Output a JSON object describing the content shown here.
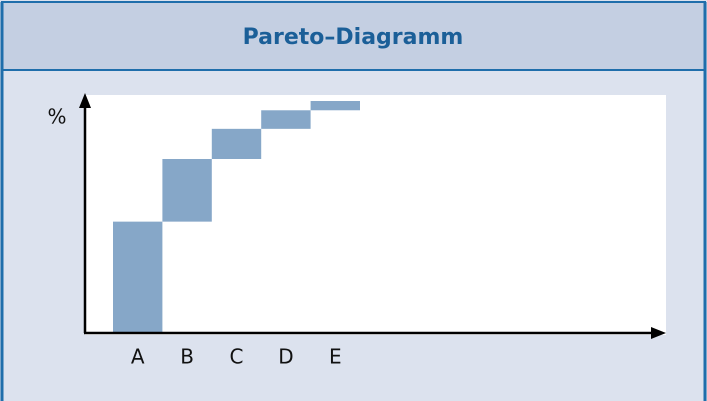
{
  "chart_data": {
    "type": "waterfall",
    "title": "Pareto–Diagramm",
    "ylabel": "%",
    "categories": [
      "A",
      "B",
      "C",
      "D",
      "E"
    ],
    "values": [
      48,
      27,
      13,
      8,
      4
    ],
    "color": "#86a7c8",
    "ylim": [
      0,
      100
    ]
  }
}
